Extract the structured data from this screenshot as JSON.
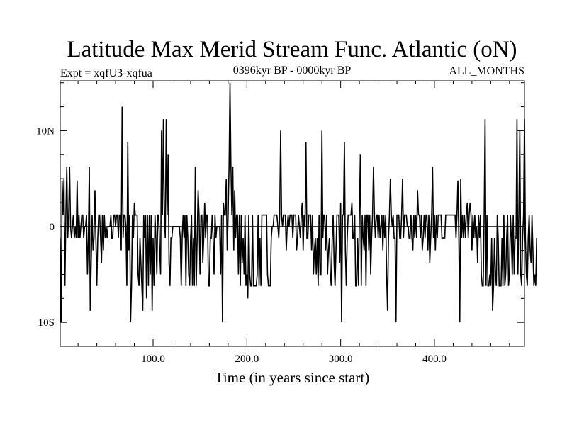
{
  "chart_data": {
    "type": "line",
    "title": "Latitude Max Merid Stream Func. Atlantic (oN)",
    "subtitle_left": "Expt = xqfU3-xqfua",
    "subtitle_center": "0396kyr BP - 0000kyr BP",
    "subtitle_right": "ALL_MONTHS",
    "xlabel": "Time (in years since start)",
    "ylabel": "",
    "xlim": [
      1,
      496
    ],
    "ylim": [
      -12.5,
      15.2
    ],
    "x_ticks": [
      {
        "value": 100,
        "label": "100.0"
      },
      {
        "value": 200,
        "label": "200.0"
      },
      {
        "value": 300,
        "label": "300.0"
      },
      {
        "value": 400,
        "label": "400.0"
      }
    ],
    "y_ticks": [
      {
        "value": 10,
        "label": "10N"
      },
      {
        "value": 0,
        "label": "0"
      },
      {
        "value": -10,
        "label": "10S"
      }
    ],
    "x_minor_step": 20,
    "y_minor_step": 2.5,
    "grid": false,
    "line_color": "#000000",
    "series": [
      {
        "x_start": 1,
        "x_step": 1,
        "values": [
          -1.2,
          -10,
          4.8,
          1.2,
          5,
          -6.2,
          1.2,
          6.2,
          -1.2,
          1.2,
          6.2,
          0,
          -1.2,
          0,
          1.2,
          -1.2,
          0,
          -1.2,
          4.8,
          -1.2,
          1.2,
          -1.2,
          0,
          1.2,
          1.2,
          -1.2,
          0,
          0,
          1.2,
          -5,
          -1.2,
          6.2,
          -8.8,
          -3.8,
          1.2,
          -2.5,
          -1.2,
          3.8,
          -1.2,
          -6.2,
          -1.2,
          1.2,
          1.2,
          -1.2,
          -3.8,
          1.2,
          -2.5,
          1.2,
          -1.2,
          0,
          -1.2,
          0,
          0,
          0,
          1.2,
          -1.2,
          -1.2,
          1.2,
          1.2,
          0,
          1.2,
          1.2,
          -1.2,
          1.2,
          1.2,
          -2.5,
          12.5,
          -1.2,
          1.2,
          1.2,
          0,
          -6.2,
          8.8,
          -2.5,
          1.2,
          -10,
          -6.2,
          1.2,
          -1.2,
          2.5,
          1.2,
          1.2,
          1.2,
          -5,
          -6.2,
          -1.2,
          -3.8,
          -6.2,
          -8.8,
          1.2,
          -1.2,
          1.2,
          -7.5,
          1.2,
          -6.2,
          1.2,
          -5,
          1.2,
          -8.8,
          -1.2,
          -6.2,
          1.2,
          -1.2,
          -5,
          1.2,
          1.2,
          -2.5,
          -5,
          10,
          1.2,
          11.2,
          1.2,
          -1.2,
          11.2,
          1.2,
          7.5,
          -3.8,
          -6.2,
          -1.2,
          -1.2,
          0,
          0,
          0,
          0,
          0,
          0,
          0,
          0,
          -1.2,
          -6.2,
          -1.2,
          1.2,
          -1.2,
          1.2,
          -6.2,
          1.2,
          -1.2,
          -5,
          -6.2,
          -1.2,
          1.2,
          -6.2,
          -1.2,
          -6.2,
          6.2,
          -6.2,
          -1.2,
          3.8,
          1.2,
          -5,
          1.2,
          1.2,
          -3.8,
          -1.2,
          2.5,
          -1.2,
          1.2,
          1.2,
          -6.2,
          -6.2,
          -1.2,
          -1.2,
          1.2,
          -1.2,
          -5,
          1.2,
          -1.2,
          0,
          0,
          0,
          0,
          -5,
          1.2,
          -10,
          2.5,
          1.2,
          1.2,
          5,
          -2.5,
          1.2,
          6.2,
          15,
          6.2,
          1.2,
          6.2,
          -2.5,
          3.8,
          -1.2,
          1.2,
          1.2,
          -5,
          1.2,
          -6.2,
          1.2,
          -3.8,
          -1.2,
          -5,
          1.2,
          -6.2,
          -5,
          -7.5,
          1.2,
          -5,
          -6.2,
          -6.2,
          1.2,
          -6.2,
          -6.2,
          -6.2,
          -6.2,
          -5,
          1.2,
          -6.2,
          -1.2,
          -6.2,
          1.2,
          1.2,
          1.2,
          1.2,
          1.2,
          1.2,
          -5,
          -6.2,
          -6.2,
          -6.2,
          -1.2,
          0,
          0,
          1.2,
          1.2,
          1.2,
          1.2,
          0,
          -1.2,
          1.2,
          10,
          1.2,
          0,
          1.2,
          1.2,
          1.2,
          -2.5,
          0,
          1.2,
          0,
          1.2,
          1.2,
          1.2,
          -1.2,
          1.2,
          1.2,
          1.2,
          -2.5,
          -1.2,
          1.2,
          0,
          -1.2,
          1.2,
          2.5,
          -2.5,
          1.2,
          0,
          8.8,
          -1.2,
          -1.2,
          1.2,
          1.2,
          1.2,
          -2.5,
          1.2,
          -5,
          -2.5,
          -1.2,
          -5,
          -1.2,
          -6.2,
          1.2,
          -5,
          -5,
          10,
          -1.2,
          1.2,
          1.2,
          -2.5,
          1.2,
          -5,
          -2.5,
          -1.2,
          -5,
          -6.2,
          -1.2,
          1.2,
          -3.8,
          -6.2,
          -2.5,
          1.2,
          1.2,
          1.2,
          -3.8,
          2.5,
          -10,
          1.2,
          1.2,
          8.8,
          -2.5,
          -6.2,
          -1.2,
          1.2,
          1.2,
          1.2,
          1.2,
          2.5,
          -1.2,
          -1.2,
          1.2,
          -6.2,
          -6.2,
          -1.2,
          -6.2,
          1.2,
          7.5,
          -6.2,
          1.2,
          -1.2,
          -2.5,
          1.2,
          -6.2,
          1.2,
          1.2,
          -2.5,
          1.2,
          -5,
          -1.2,
          1.2,
          6.2,
          1.2,
          -1.2,
          1.2,
          1.2,
          -1.2,
          1.2,
          -1.2,
          0,
          1.2,
          -2.5,
          1.2,
          -1.2,
          1.2,
          -5,
          -8.8,
          -1.2,
          1.2,
          5,
          1.2,
          0,
          1.2,
          -1.2,
          -1.2,
          -10,
          1.2,
          1.2,
          1.2,
          -1.2,
          -1.2,
          1.2,
          5,
          -1.2,
          1.2,
          1.2,
          1.2,
          0,
          0,
          -1.2,
          -1.2,
          1.2,
          -1.2,
          -2.5,
          1.2,
          -1.2,
          1.2,
          -1.2,
          3.8,
          1.2,
          1.2,
          -1.2,
          1.2,
          -2.5,
          -1.2,
          1.2,
          -1.2,
          1.2,
          1.2,
          -2.5,
          1.2,
          -3.8,
          -1.2,
          1.2,
          6.2,
          -1.2,
          1.2,
          -2.5,
          1.2,
          -1.2,
          1.2,
          1.2,
          1.2,
          1.2,
          -1.2,
          -1.2,
          -1.2,
          -1.2,
          1.2,
          1.2,
          1.2,
          1.2,
          1.2,
          1.2,
          1.2,
          1.2,
          1.2,
          1.2,
          1.2,
          -1.2,
          1.2,
          4.8,
          -1.2,
          -10,
          5,
          -1.2,
          1.2,
          -1.2,
          1.2,
          -1.2,
          1.2,
          2.5,
          -1.2,
          1.2,
          2.5,
          1.2,
          -2.5,
          1.2,
          -1.2,
          1.2,
          -1.2,
          0,
          -3.8,
          1.2,
          -1.2,
          1.2,
          -5,
          -6.2,
          -6.2,
          1.2,
          11.2,
          -6.2,
          1.2,
          -6.2,
          -6.2,
          -5,
          -6.2,
          -1.2,
          -8.8,
          -6.2,
          -1.2,
          -5,
          -6.2,
          1.2,
          -1.2,
          -6.2,
          -6.2,
          -6.2,
          -1.2,
          -6.2,
          1.2,
          -6.2,
          -5,
          -1.2,
          1.2,
          -6.2,
          -5,
          1.2,
          -1.2,
          -5,
          1.2,
          -5,
          -1.2,
          -1.2,
          11.2,
          -5,
          1.2,
          10,
          -5,
          -6.2,
          -1.2,
          1.2,
          11.2,
          -1.2,
          -5,
          -6.2,
          -1.2,
          1.2,
          -2.5,
          -3.8,
          1.2,
          -2.5,
          -6.2,
          -5,
          -6.2,
          -1.2
        ]
      }
    ]
  }
}
